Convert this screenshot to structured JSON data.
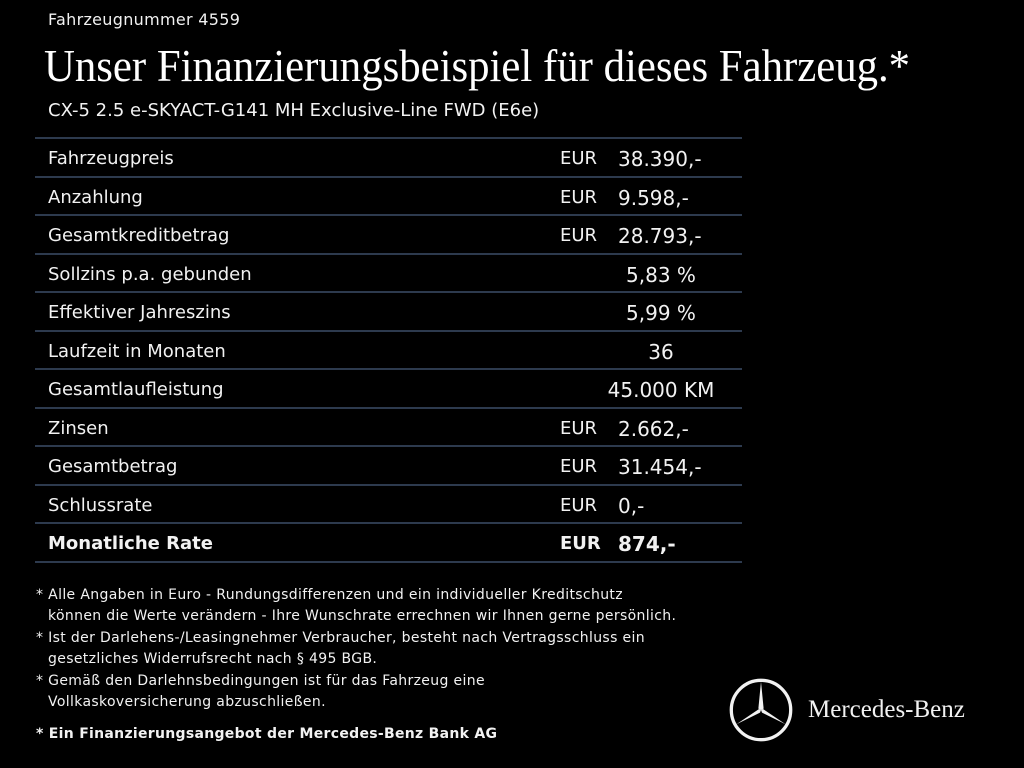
{
  "vehicle_number": "Fahrzeugnummer 4559",
  "headline": "Unser Finanzierungsbeispiel für dieses Fahrzeug.*",
  "model": "CX-5 2.5 e-SKYACT-G141 MH Exclusive-Line FWD (E6e)",
  "rows": [
    {
      "label": "Fahrzeugpreis",
      "currency": "EUR",
      "value": "38.390,-"
    },
    {
      "label": "Anzahlung",
      "currency": "EUR",
      "value": "9.598,-"
    },
    {
      "label": "Gesamtkreditbetrag",
      "currency": "EUR",
      "value": "28.793,-"
    },
    {
      "label": "Sollzins p.a. gebunden",
      "currency": "",
      "value": "5,83 %"
    },
    {
      "label": "Effektiver Jahreszins",
      "currency": "",
      "value": "5,99 %"
    },
    {
      "label": "Laufzeit in Monaten",
      "currency": "",
      "value": "36"
    },
    {
      "label": "Gesamtlaufleistung",
      "currency": "",
      "value": "45.000 KM"
    },
    {
      "label": "Zinsen",
      "currency": "EUR",
      "value": "2.662,-"
    },
    {
      "label": "Gesamtbetrag",
      "currency": "EUR",
      "value": "31.454,-"
    },
    {
      "label": "Schlussrate",
      "currency": "EUR",
      "value": "0,-"
    },
    {
      "label": "Monatliche Rate",
      "currency": "EUR",
      "value": "874,-"
    }
  ],
  "notes": [
    "* Alle Angaben in Euro - Rundungsdifferenzen und ein individueller Kreditschutz\nkönnen die Werte verändern - Ihre Wunschrate errechnen wir Ihnen gerne persönlich.",
    "* Ist der Darlehens-/Leasingnehmer Verbraucher, besteht nach Vertragsschluss ein\ngesetzliches Widerrufsrecht nach § 495 BGB.",
    "* Gemäß den Darlehnsbedingungen ist für das Fahrzeug eine\nVollkaskoversicherung abzuschließen."
  ],
  "offer": "* Ein Finanzierungsangebot der Mercedes-Benz Bank AG",
  "brand": "Mercedes-Benz",
  "colors": {
    "background": "#000000",
    "text": "#f2f2f2",
    "divider": "#2d3a4e"
  }
}
